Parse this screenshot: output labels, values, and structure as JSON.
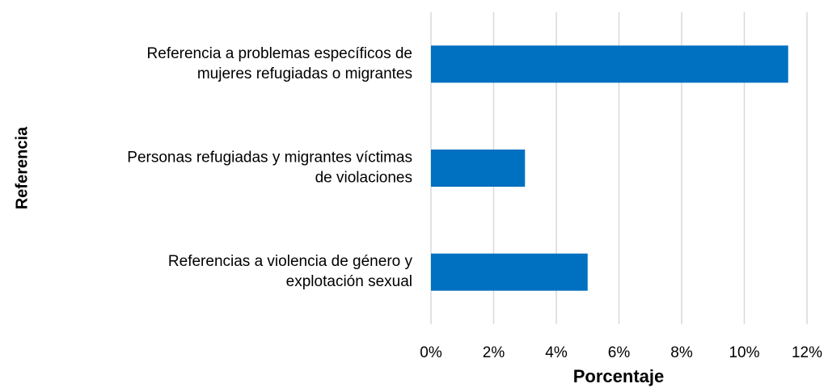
{
  "chart_data": {
    "type": "bar",
    "orientation": "horizontal",
    "x_label": "Porcentaje",
    "y_label": "Referencia",
    "categories": [
      "Referencia a problemas específicos de\nmujeres refugiadas o migrantes",
      "Personas refugiadas y migrantes víctimas\nde violaciones",
      "Referencias a violencia de género y\nexplotación sexual"
    ],
    "values": [
      11.4,
      3,
      5
    ],
    "color": "#0070c0",
    "xlim": [
      0,
      12
    ],
    "xticks": [
      {
        "value": 0,
        "label": "0%"
      },
      {
        "value": 2,
        "label": "2%"
      },
      {
        "value": 4,
        "label": "4%"
      },
      {
        "value": 6,
        "label": "6%"
      },
      {
        "value": 8,
        "label": "8%"
      },
      {
        "value": 10,
        "label": "10%"
      },
      {
        "value": 12,
        "label": "12%"
      }
    ],
    "grid": true
  }
}
